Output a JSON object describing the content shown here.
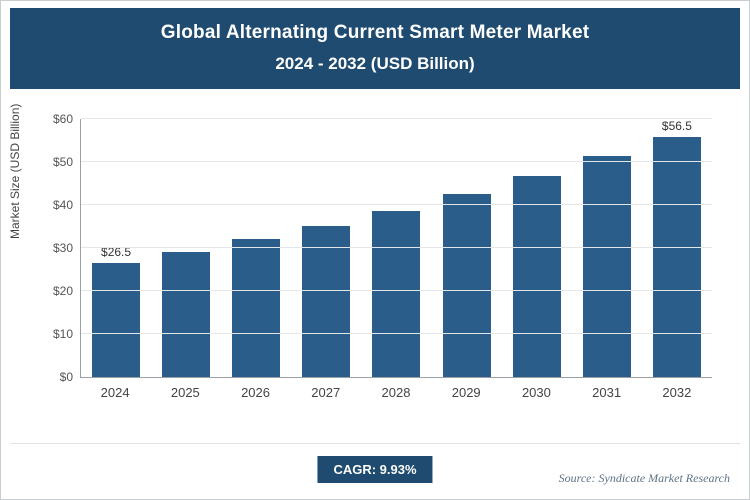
{
  "header": {
    "title_line1": "Global Alternating Current Smart Meter Market",
    "title_line2": "2024 - 2032 (USD Billion)"
  },
  "chart_data": {
    "type": "bar",
    "title": "Global Alternating Current Smart Meter Market 2024 - 2032 (USD Billion)",
    "categories": [
      "2024",
      "2025",
      "2026",
      "2027",
      "2028",
      "2029",
      "2030",
      "2031",
      "2032"
    ],
    "values": [
      26.5,
      29.1,
      32.0,
      35.2,
      38.7,
      42.5,
      46.8,
      51.4,
      56.5
    ],
    "annotations": [
      {
        "index": 0,
        "text": "$26.5"
      },
      {
        "index": 8,
        "text": "$56.5"
      }
    ],
    "xlabel": "",
    "ylabel": "Market Size (USD Billion)",
    "ylim": [
      0,
      60
    ],
    "yticks": [
      {
        "value": 0,
        "label": "$0"
      },
      {
        "value": 10,
        "label": "$10"
      },
      {
        "value": 20,
        "label": "$20"
      },
      {
        "value": 30,
        "label": "$30"
      },
      {
        "value": 40,
        "label": "$40"
      },
      {
        "value": 50,
        "label": "$50"
      },
      {
        "value": 60,
        "label": "$60"
      }
    ],
    "grid": true,
    "legend": "none",
    "bar_color": "#2a5d8a"
  },
  "footer": {
    "cagr_label": "CAGR: 9.93%",
    "source": "Source: Syndicate Market Research"
  },
  "colors": {
    "header_bg": "#1e4b6f",
    "bar": "#2a5d8a",
    "badge_bg": "#1e4b6f",
    "gridline": "#e4e7ea"
  }
}
